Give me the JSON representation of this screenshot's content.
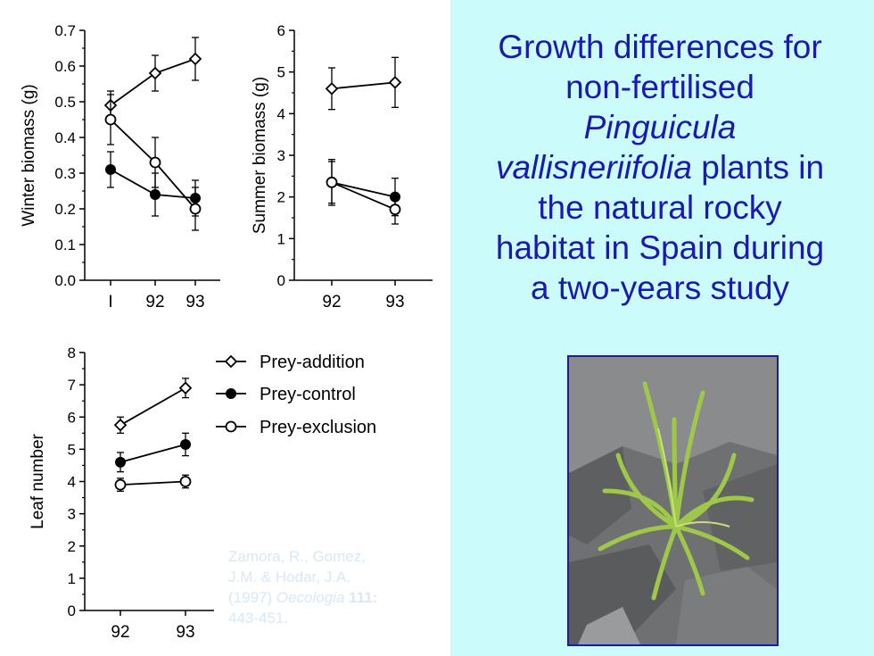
{
  "title": {
    "line1": "Growth differences for",
    "line2": "non-fertilised",
    "line3": "Pinguicula",
    "line4_italic": "vallisneriifolia",
    "line4_rest": " plants in",
    "line5": "the natural rocky",
    "line6": "habitat in Spain during",
    "line7": "a two-years study"
  },
  "citation": {
    "text1": "Zamora, R., Gomez,",
    "text2": "J.M. & Hodar, J.A.",
    "year": "(1997)",
    "journal": "Oecologia",
    "volume": "111:",
    "pages": "443-451."
  },
  "legend": {
    "items": [
      {
        "label": "Prey-addition",
        "marker": "open-diamond"
      },
      {
        "label": "Prey-control",
        "marker": "filled-circle"
      },
      {
        "label": "Prey-exclusion",
        "marker": "open-circle"
      }
    ]
  },
  "photo": {
    "icon": "plant-photo",
    "colors": {
      "rock": "#6f7072",
      "leaf": "#9fc84a"
    }
  },
  "colors": {
    "title": "#1a1ab0",
    "right_bg": "#ccfbfb",
    "citation": "#d8e8f6",
    "ink": "#000000"
  },
  "chart_data": [
    {
      "type": "line",
      "ylabel": "Winter biomass (g)",
      "categories": [
        "I",
        "92",
        "93"
      ],
      "ylim": [
        0,
        0.7
      ],
      "yticks": [
        "0.0",
        "0.1",
        "0.2",
        "0.3",
        "0.4",
        "0.5",
        "0.6",
        "0.7"
      ],
      "series": [
        {
          "name": "Prey-addition",
          "values": [
            0.49,
            0.58,
            0.62
          ],
          "err": [
            0.04,
            0.05,
            0.06
          ]
        },
        {
          "name": "Prey-control",
          "values": [
            0.31,
            0.24,
            0.23
          ],
          "err": [
            0.05,
            0.06,
            0.05
          ]
        },
        {
          "name": "Prey-exclusion",
          "values": [
            0.45,
            0.33,
            0.2
          ],
          "err": [
            0.07,
            0.07,
            0.06
          ]
        }
      ]
    },
    {
      "type": "line",
      "ylabel": "Summer biomass (g)",
      "categories": [
        "92",
        "93"
      ],
      "ylim": [
        0,
        6
      ],
      "yticks": [
        "0",
        "1",
        "2",
        "3",
        "4",
        "5",
        "6"
      ],
      "series": [
        {
          "name": "Prey-addition",
          "values": [
            4.6,
            4.75
          ],
          "err": [
            0.5,
            0.6
          ]
        },
        {
          "name": "Prey-control",
          "values": [
            2.35,
            2.0
          ],
          "err": [
            0.5,
            0.45
          ]
        },
        {
          "name": "Prey-exclusion",
          "values": [
            2.35,
            1.7
          ],
          "err": [
            0.55,
            0.35
          ]
        }
      ]
    },
    {
      "type": "line",
      "ylabel": "Leaf number",
      "categories": [
        "92",
        "93"
      ],
      "ylim": [
        0,
        8
      ],
      "yticks": [
        "0",
        "1",
        "2",
        "3",
        "4",
        "5",
        "6",
        "7",
        "8"
      ],
      "series": [
        {
          "name": "Prey-addition",
          "values": [
            5.75,
            6.9
          ],
          "err": [
            0.25,
            0.3
          ]
        },
        {
          "name": "Prey-control",
          "values": [
            4.6,
            5.15
          ],
          "err": [
            0.3,
            0.35
          ]
        },
        {
          "name": "Prey-exclusion",
          "values": [
            3.9,
            4.0
          ],
          "err": [
            0.2,
            0.2
          ]
        }
      ]
    }
  ]
}
